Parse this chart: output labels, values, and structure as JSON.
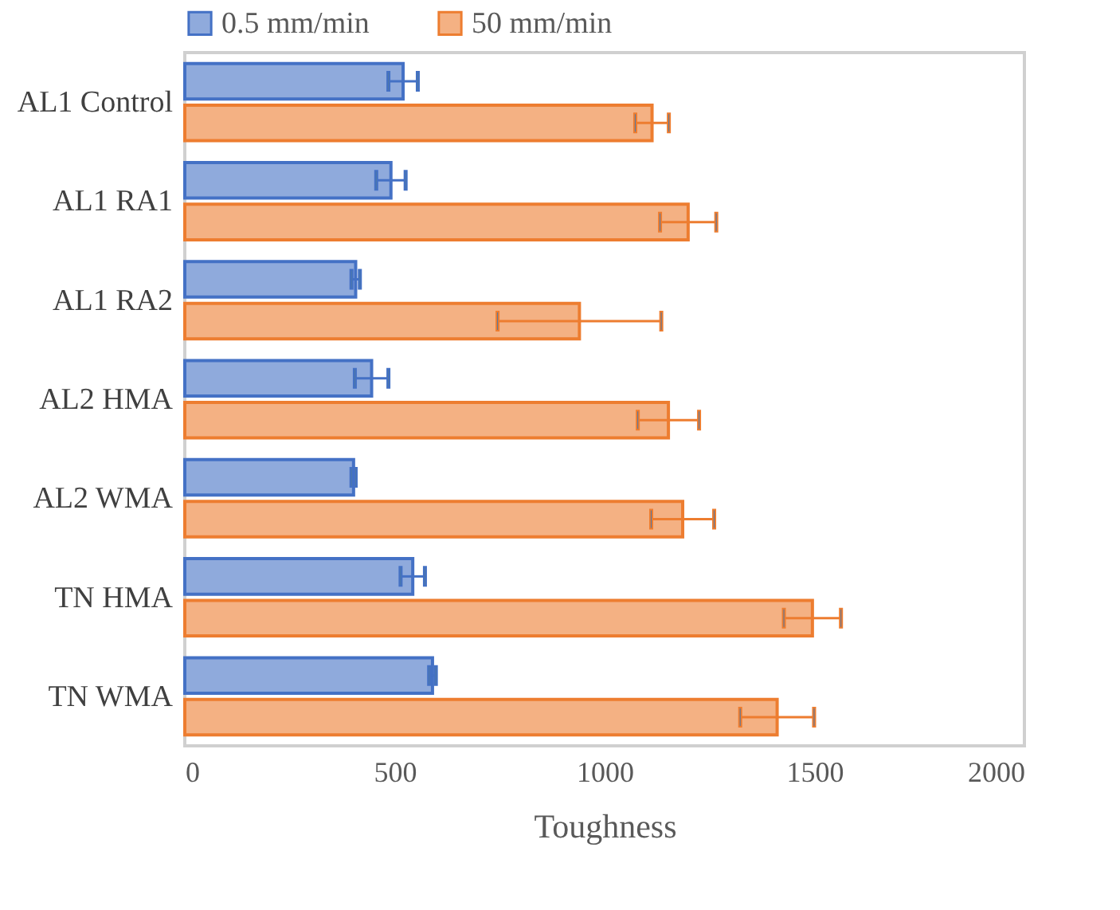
{
  "chart_data": {
    "type": "bar",
    "orientation": "horizontal",
    "xlabel": "Toughness",
    "categories": [
      "AL1 Control",
      "AL1 RA1",
      "AL1 RA2",
      "AL2 HMA",
      "AL2 WMA",
      "TN HMA",
      "TN WMA"
    ],
    "series": [
      {
        "name": "0.5 mm/min",
        "color": "#8faadc",
        "values": [
          520,
          491,
          407,
          445,
          402,
          543,
          590
        ],
        "errors": [
          35,
          35,
          10,
          40,
          5,
          29,
          8
        ]
      },
      {
        "name": "50 mm/min",
        "color": "#f4b183",
        "values": [
          1113,
          1199,
          940,
          1152,
          1186,
          1495,
          1411
        ],
        "errors": [
          40,
          67,
          195,
          73,
          75,
          68,
          88
        ]
      }
    ],
    "xlim": [
      0,
      2000
    ],
    "xticks": [
      0,
      500,
      1000,
      1500,
      2000
    ],
    "grid": false,
    "legend": "top"
  }
}
